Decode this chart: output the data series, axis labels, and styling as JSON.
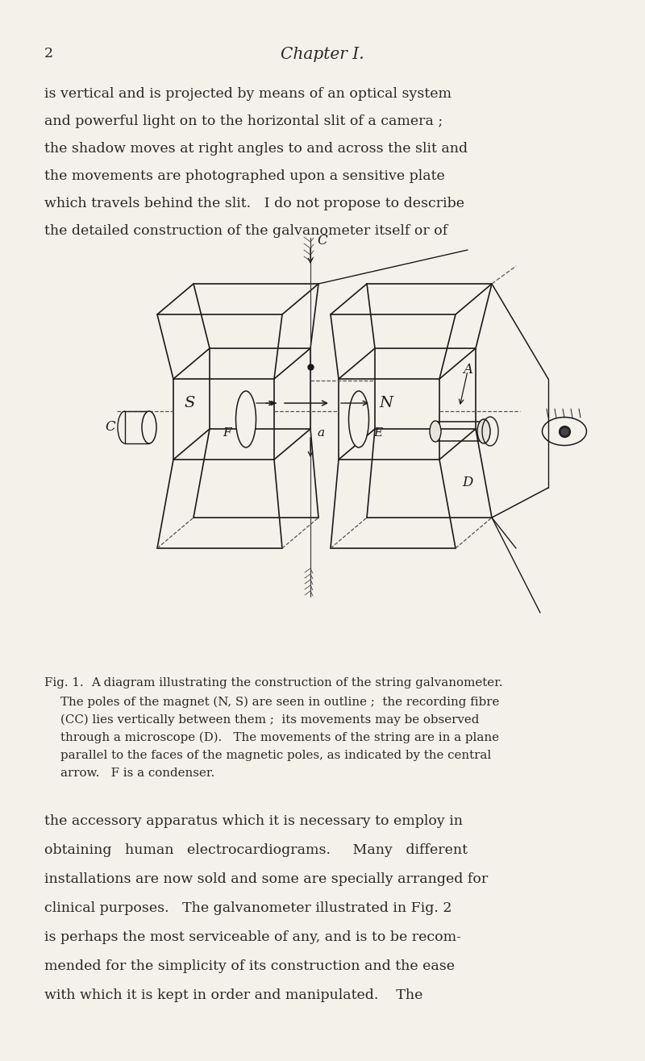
{
  "background_color": "#f4f1eb",
  "page_number": "2",
  "chapter_title": "Chapter I.",
  "para1_lines": [
    "is vertical and is projected by means of an optical system",
    "and powerful light on to the horizontal slit of a camera ;",
    "the shadow moves at right angles to and across the slit and",
    "the movements are photographed upon a sensitive plate",
    "which travels behind the slit.   I do not propose to describe",
    "the detailed construction of the galvanometer itself or of"
  ],
  "fig_caption_title": "Fig. 1.",
  "fig_caption_line1": "A diagram illustrating the construction of the string galvanometer.",
  "fig_caption_lines": [
    "The poles of the magnet (N, S) are seen in outline ;  the recording fibre",
    "(CC) lies vertically between them ;  its movements may be observed",
    "through a microscope (D).   The movements of the string are in a plane",
    "parallel to the faces of the magnetic poles, as indicated by the central",
    "arrow.   F is a condenser."
  ],
  "para2_lines": [
    "the accessory apparatus which it is necessary to employ in",
    "obtaining   human   electrocardiograms.     Many   different",
    "installations are now sold and some are specially arranged for",
    "clinical purposes.   The galvanometer illustrated in Fig. 2",
    "is perhaps the most serviceable of any, and is to be recom-",
    "mended for the simplicity of its construction and the ease",
    "with which it is kept in order and manipulated.    The"
  ],
  "text_color": "#2a2826",
  "text_fontsize": 12.5,
  "caption_fontsize": 10.8
}
